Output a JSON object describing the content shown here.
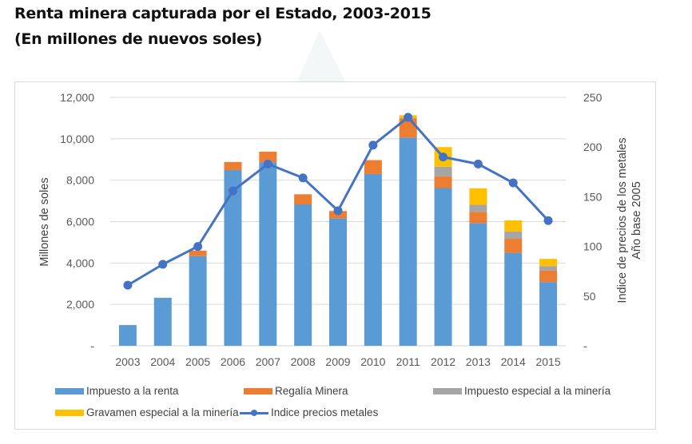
{
  "title_line1": "Renta minera capturada por el Estado, 2003-2015",
  "title_line2": "(En millones de nuevos soles)",
  "colors": {
    "impuesto_renta": "#5b9bd5",
    "regalia": "#ed7d31",
    "impuesto_especial": "#a5a5a5",
    "gravamen": "#ffc000",
    "indice_line": "#4472c4",
    "grid": "#d9d9d9",
    "text": "#595959"
  },
  "chart_data": {
    "type": "bar",
    "subtype": "stacked bar with line on secondary axis",
    "title": "Renta minera capturada por el Estado, 2003-2015",
    "subtitle": "(En millones de nuevos soles)",
    "categories": [
      "2003",
      "2004",
      "2005",
      "2006",
      "2007",
      "2008",
      "2009",
      "2010",
      "2011",
      "2012",
      "2013",
      "2014",
      "2015"
    ],
    "series": [
      {
        "name": "Impuesto a la renta",
        "kind": "bar",
        "axis": "left",
        "values": [
          1000,
          2320,
          4330,
          8490,
          8870,
          6830,
          6160,
          8300,
          10060,
          7620,
          5930,
          4490,
          3080
        ]
      },
      {
        "name": "Regalía Minera",
        "kind": "bar",
        "axis": "left",
        "values": [
          0,
          0,
          270,
          390,
          510,
          490,
          350,
          670,
          920,
          570,
          540,
          680,
          550
        ]
      },
      {
        "name": "Impuesto especial a la minería",
        "kind": "bar",
        "axis": "left",
        "values": [
          0,
          0,
          0,
          0,
          0,
          0,
          0,
          0,
          40,
          460,
          340,
          350,
          220
        ]
      },
      {
        "name": "Gravamen especial a la minería",
        "kind": "bar",
        "axis": "left",
        "values": [
          0,
          0,
          0,
          0,
          0,
          0,
          0,
          0,
          120,
          950,
          800,
          540,
          350
        ]
      },
      {
        "name": "Indice precios metales",
        "kind": "line",
        "axis": "right",
        "values": [
          61,
          82,
          100,
          156,
          183,
          169,
          136,
          202,
          230,
          190,
          183,
          164,
          126
        ]
      }
    ],
    "xlabel": "",
    "ylabel": "Millones de soles",
    "ylabel_right_line1": "Indice de precios de los metales",
    "ylabel_right_line2": "Año base 2005",
    "ylim": [
      0,
      12000
    ],
    "ylim_right": [
      0,
      250
    ],
    "yticks": [
      0,
      2000,
      4000,
      6000,
      8000,
      10000,
      12000
    ],
    "ytick_labels": [
      "-",
      "2,000",
      "4,000",
      "6,000",
      "8,000",
      "10,000",
      "12,000"
    ],
    "yticks_right": [
      0,
      50,
      100,
      150,
      200,
      250
    ],
    "ytick_labels_right": [
      "-",
      "50",
      "100",
      "150",
      "200",
      "250"
    ],
    "grid": true,
    "legend_position": "bottom"
  }
}
